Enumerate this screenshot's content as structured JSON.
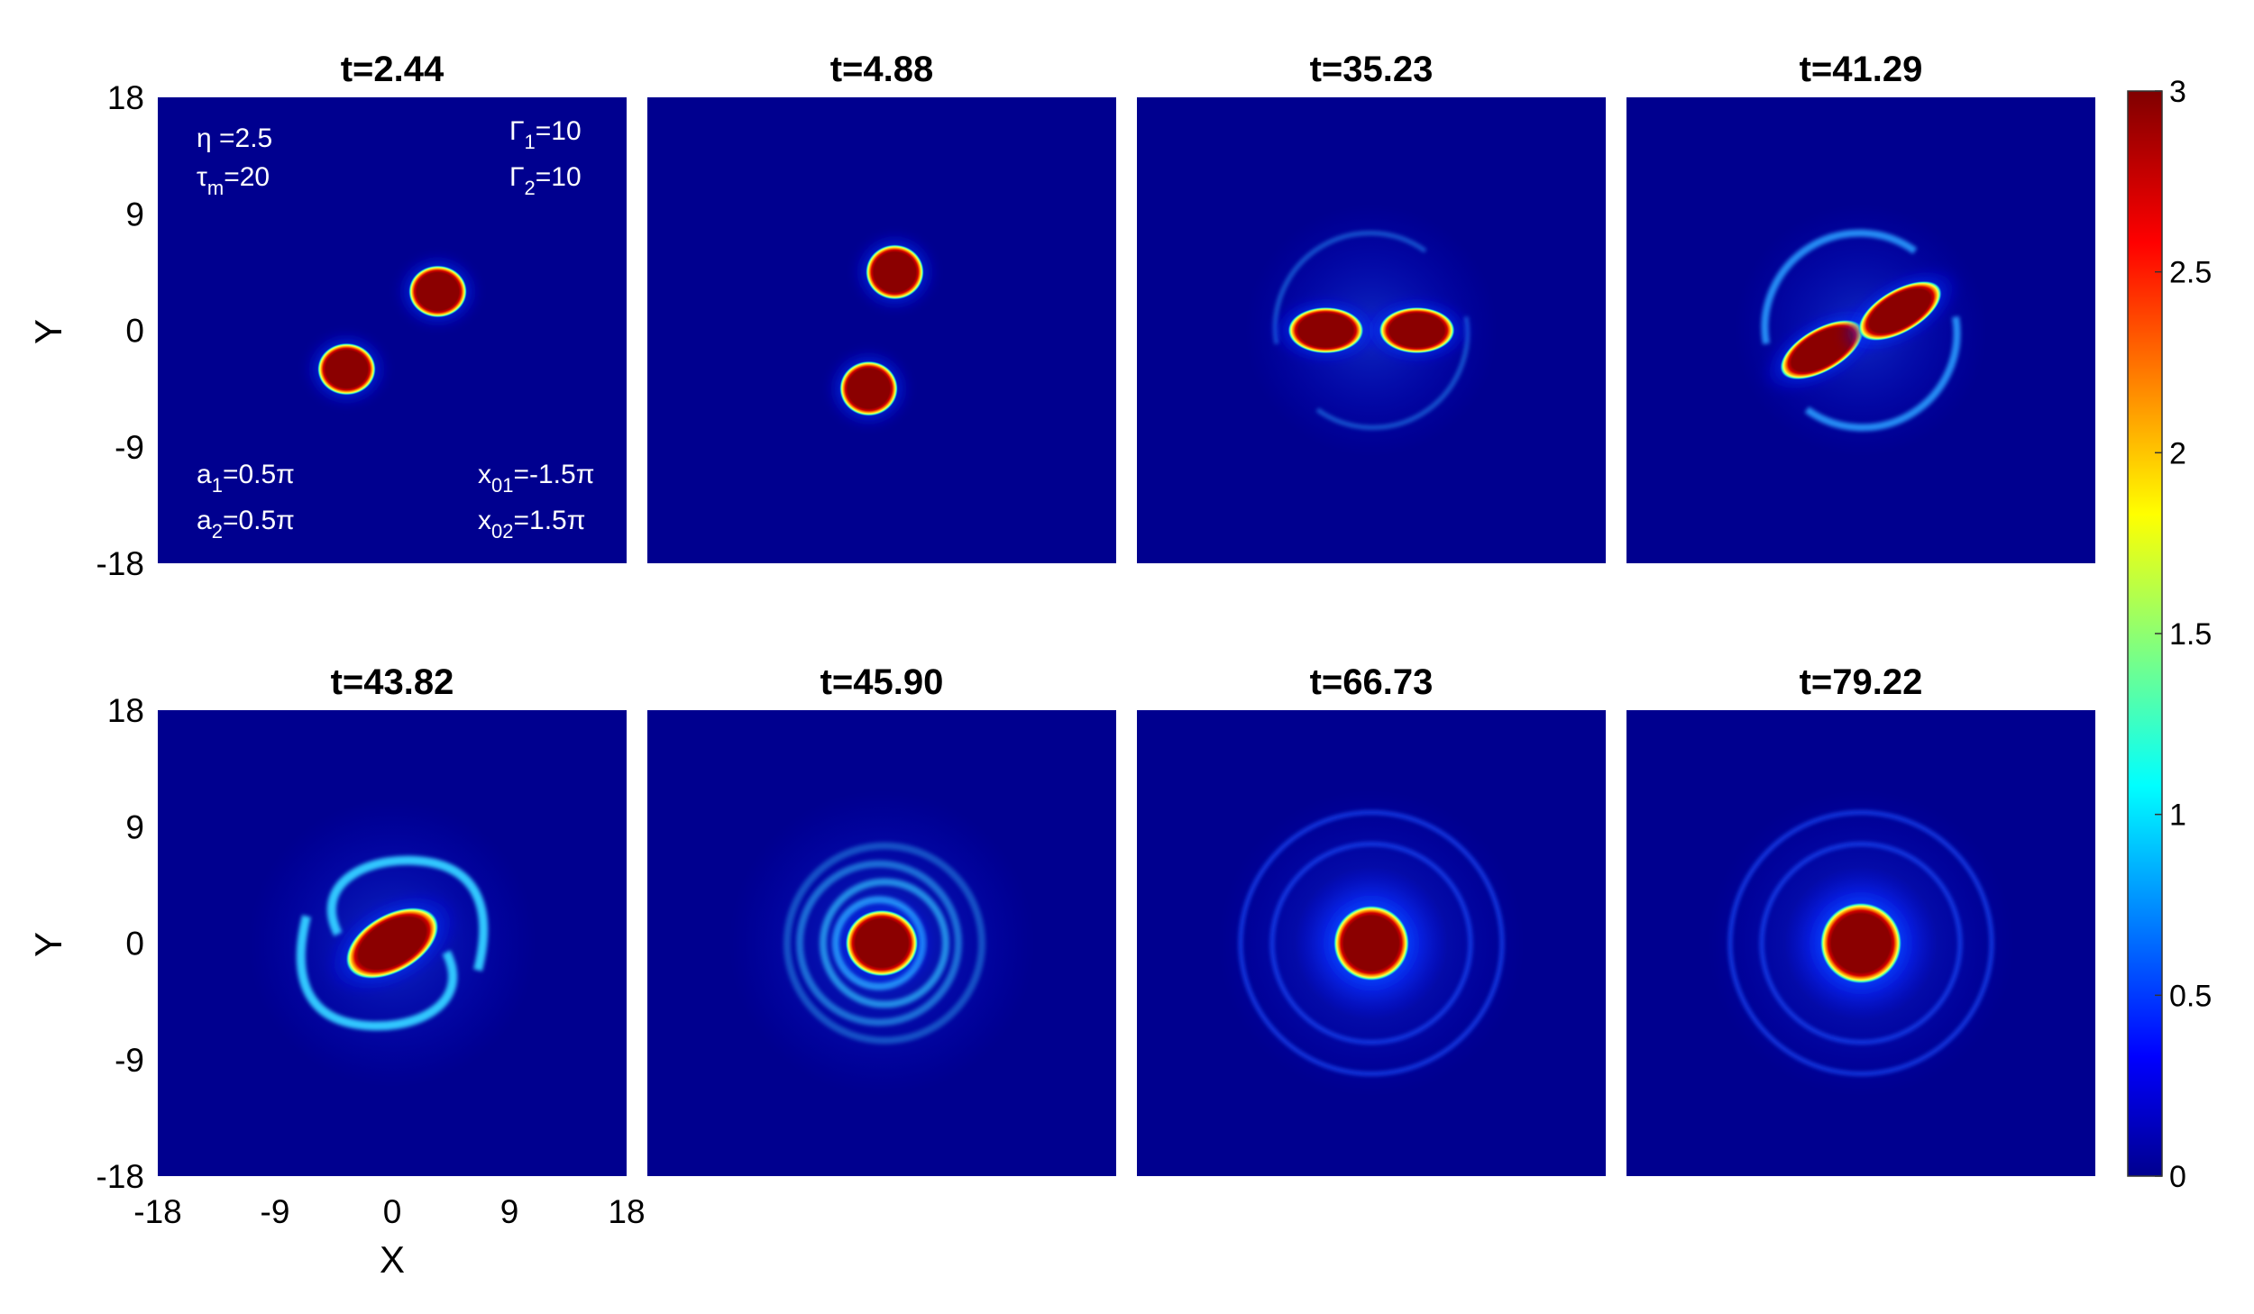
{
  "chart_data": {
    "type": "heatmap",
    "xlabel": "X",
    "ylabel": "Y",
    "xlim": [
      -18,
      18
    ],
    "ylim": [
      -18,
      18
    ],
    "xticks": [
      "-18",
      "-9",
      "0",
      "9",
      "18"
    ],
    "yticks": [
      "18",
      "9",
      "0",
      "-9",
      "-18"
    ],
    "colorbar": {
      "colormap": "jet",
      "range": [
        0,
        3
      ],
      "ticks": [
        "3",
        "2.5",
        "2",
        "1.5",
        "1",
        "0.5",
        "0"
      ]
    },
    "annotations": {
      "eta": "η =2.5",
      "tau_prefix": "τ",
      "tau_sub": "m",
      "tau_suffix": "=20",
      "gamma1_prefix": "Γ",
      "gamma1_sub": "1",
      "gamma1_suffix": "=10",
      "gamma2_prefix": "Γ",
      "gamma2_sub": "2",
      "gamma2_suffix": "=10",
      "a1_prefix": "a",
      "a1_sub": "1",
      "a1_suffix": "=0.5π",
      "a2_prefix": "a",
      "a2_sub": "2",
      "a2_suffix": "=0.5π",
      "x01_prefix": "x",
      "x01_sub": "01",
      "x01_suffix": "=-1.5π",
      "x02_prefix": "x",
      "x02_sub": "02",
      "x02_suffix": "=1.5π"
    },
    "panels": [
      {
        "title": "t=2.44",
        "stage": "two-vortices",
        "vortices": [
          {
            "x": -3.5,
            "y": -3.0,
            "rx": 2.0,
            "ry": 1.8
          },
          {
            "x": 3.5,
            "y": 3.0,
            "rx": 2.0,
            "ry": 1.8
          }
        ]
      },
      {
        "title": "t=4.88",
        "stage": "two-vortices",
        "vortices": [
          {
            "x": 1.0,
            "y": 4.5,
            "rx": 2.0,
            "ry": 1.9
          },
          {
            "x": -1.0,
            "y": -4.5,
            "rx": 2.0,
            "ry": 1.9
          }
        ]
      },
      {
        "title": "t=35.23",
        "stage": "pairing",
        "vortices": [
          {
            "x": -3.5,
            "y": 0.0,
            "rx": 2.6,
            "ry": 1.6
          },
          {
            "x": 3.5,
            "y": 0.0,
            "rx": 2.6,
            "ry": 1.6
          }
        ]
      },
      {
        "title": "t=41.29",
        "stage": "merging",
        "vortices": [
          {
            "x": -3.0,
            "y": -1.5,
            "rx": 3.2,
            "ry": 1.5
          },
          {
            "x": 3.0,
            "y": 1.5,
            "rx": 3.2,
            "ry": 1.5
          }
        ]
      },
      {
        "title": "t=43.82",
        "stage": "spiral",
        "vortices": [
          {
            "x": 0.0,
            "y": 0.0,
            "rx": 3.5,
            "ry": 2.0
          }
        ]
      },
      {
        "title": "t=45.90",
        "stage": "tight-spiral",
        "vortices": [
          {
            "x": 0.0,
            "y": 0.0,
            "rx": 2.5,
            "ry": 2.3
          }
        ]
      },
      {
        "title": "t=66.73",
        "stage": "axisymmetric",
        "vortices": [
          {
            "x": 0.0,
            "y": 0.0,
            "rx": 2.6,
            "ry": 2.6
          }
        ]
      },
      {
        "title": "t=79.22",
        "stage": "axisymmetric",
        "vortices": [
          {
            "x": 0.0,
            "y": 0.0,
            "rx": 2.8,
            "ry": 2.8
          }
        ]
      }
    ]
  }
}
